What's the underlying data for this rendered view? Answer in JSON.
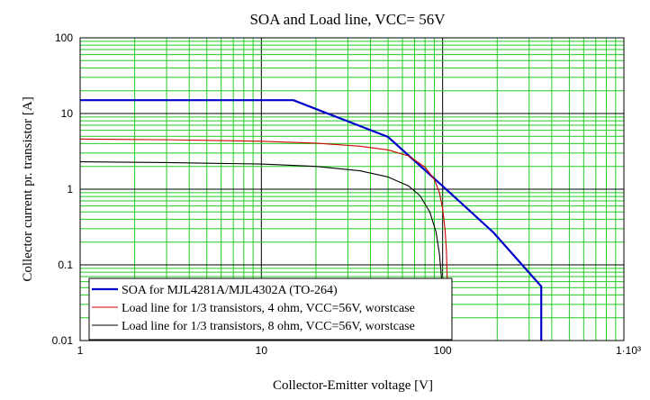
{
  "chart_data": {
    "type": "line",
    "title": "SOA and Load line, VCC= 56V",
    "xlabel": "Collector-Emitter voltage [V]",
    "ylabel": "Collector current pr. transistor [A]",
    "xscale": "log",
    "yscale": "log",
    "xlim": [
      1,
      1000
    ],
    "ylim": [
      0.01,
      100
    ],
    "grid": true,
    "legend_position": "bottom-left",
    "x_tick_labels": [
      "1",
      "10",
      "100",
      "1·10³"
    ],
    "y_tick_labels": [
      "100",
      "10",
      "1",
      "0.1",
      "0.01"
    ],
    "series": [
      {
        "name": "SOA for MJL4281A/MJL4302A (TO-264)",
        "color": "#0000cc",
        "x": [
          1,
          15,
          50,
          100,
          190,
          350,
          350
        ],
        "y": [
          15,
          15,
          4.9,
          1.1,
          0.27,
          0.052,
          0.01
        ]
      },
      {
        "name": "Load line for 1/3 transistors, 4 ohm, VCC=56V, worstcase",
        "color": "#cc0000",
        "x": [
          1,
          3,
          10,
          20,
          35,
          50,
          65,
          80,
          90,
          96,
          100,
          103,
          105,
          106,
          107,
          107.5
        ],
        "y": [
          4.6,
          4.5,
          4.3,
          4.05,
          3.7,
          3.3,
          2.75,
          1.95,
          1.35,
          0.9,
          0.55,
          0.3,
          0.15,
          0.06,
          0.02,
          0.01
        ]
      },
      {
        "name": "Load line for 1/3 transistors, 8 ohm, VCC=56V, worstcase",
        "color": "#000000",
        "x": [
          1,
          3,
          10,
          20,
          35,
          50,
          65,
          75,
          85,
          92,
          96,
          99,
          100.5,
          101.5,
          102
        ],
        "y": [
          2.3,
          2.25,
          2.15,
          2.0,
          1.75,
          1.45,
          1.1,
          0.82,
          0.5,
          0.27,
          0.14,
          0.06,
          0.03,
          0.015,
          0.01
        ]
      }
    ]
  }
}
